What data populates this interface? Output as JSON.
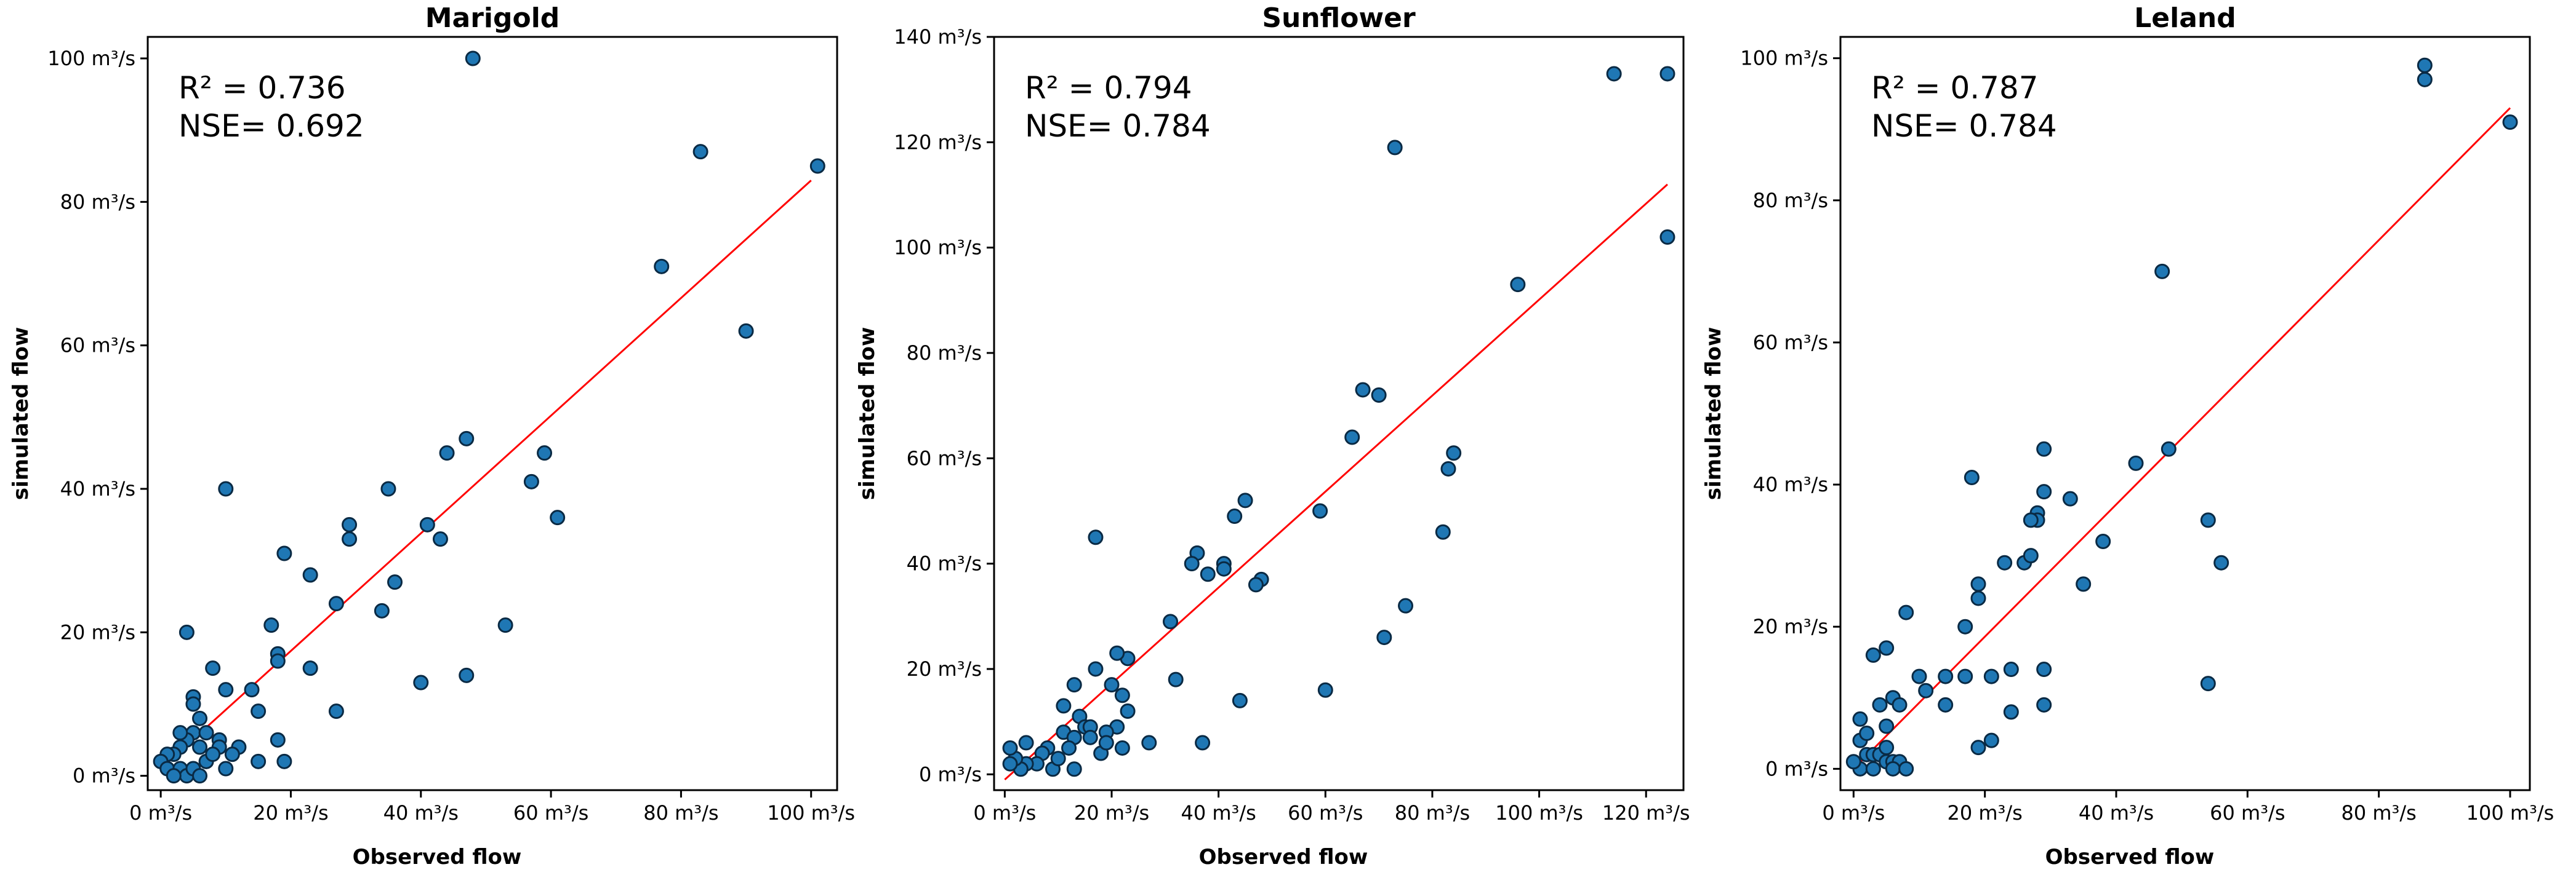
{
  "figure": {
    "xlabel": "Observed flow",
    "ylabel": "simulated flow"
  },
  "chart_data": [
    {
      "type": "scatter",
      "title": "Marigold",
      "xlabel": "Observed flow",
      "ylabel": "simulated flow",
      "unit": "m³/s",
      "xlim": [
        -2,
        104
      ],
      "ylim": [
        -2,
        103
      ],
      "xticks": [
        0,
        20,
        40,
        60,
        80,
        100
      ],
      "yticks": [
        0,
        20,
        40,
        60,
        80,
        100
      ],
      "xtick_labels": [
        "0 m³/s",
        "20 m³/s",
        "40 m³/s",
        "60 m³/s",
        "80 m³/s",
        "100 m³/s"
      ],
      "ytick_labels": [
        "0 m³/s",
        "20 m³/s",
        "40 m³/s",
        "60 m³/s",
        "80 m³/s",
        "100 m³/s"
      ],
      "stats": {
        "r2_label": "R² = 0.736",
        "nse_label": "NSE= 0.692"
      },
      "fit_line": [
        [
          0,
          1
        ],
        [
          100,
          83
        ]
      ],
      "points": [
        [
          48,
          100
        ],
        [
          101,
          85
        ],
        [
          83,
          87
        ],
        [
          77,
          71
        ],
        [
          90,
          62
        ],
        [
          47,
          47
        ],
        [
          44,
          45
        ],
        [
          59,
          45
        ],
        [
          57,
          41
        ],
        [
          61,
          36
        ],
        [
          35,
          40
        ],
        [
          10,
          40
        ],
        [
          29,
          35
        ],
        [
          29,
          33
        ],
        [
          41,
          35
        ],
        [
          43,
          33
        ],
        [
          19,
          31
        ],
        [
          36,
          27
        ],
        [
          23,
          28
        ],
        [
          34,
          23
        ],
        [
          27,
          24
        ],
        [
          53,
          21
        ],
        [
          17,
          21
        ],
        [
          18,
          17
        ],
        [
          18,
          16
        ],
        [
          23,
          15
        ],
        [
          40,
          13
        ],
        [
          47,
          14
        ],
        [
          4,
          20
        ],
        [
          8,
          15
        ],
        [
          5,
          11
        ],
        [
          5,
          10
        ],
        [
          10,
          12
        ],
        [
          14,
          12
        ],
        [
          27,
          9
        ],
        [
          15,
          9
        ],
        [
          18,
          5
        ],
        [
          19,
          2
        ],
        [
          15,
          2
        ],
        [
          12,
          4
        ],
        [
          11,
          3
        ],
        [
          9,
          5
        ],
        [
          9,
          4
        ],
        [
          6,
          8
        ],
        [
          5,
          6
        ],
        [
          7,
          6
        ],
        [
          6,
          4
        ],
        [
          4,
          5
        ],
        [
          3,
          4
        ],
        [
          2,
          3
        ],
        [
          1,
          3
        ],
        [
          0,
          2
        ],
        [
          1,
          1
        ],
        [
          3,
          1
        ],
        [
          4,
          0
        ],
        [
          5,
          1
        ],
        [
          6,
          0
        ],
        [
          7,
          2
        ],
        [
          2,
          0
        ],
        [
          10,
          1
        ],
        [
          3,
          6
        ],
        [
          8,
          3
        ]
      ]
    },
    {
      "type": "scatter",
      "title": "Sunflower",
      "xlabel": "Observed flow",
      "ylabel": "simulated flow",
      "unit": "m³/s",
      "xlim": [
        -2,
        127
      ],
      "ylim": [
        -3,
        140
      ],
      "xticks": [
        0,
        20,
        40,
        60,
        80,
        100,
        120
      ],
      "yticks": [
        0,
        20,
        40,
        60,
        80,
        100,
        120,
        140
      ],
      "xtick_labels": [
        "0 m³/s",
        "20 m³/s",
        "40 m³/s",
        "60 m³/s",
        "80 m³/s",
        "100 m³/s",
        "120 m³/s"
      ],
      "ytick_labels": [
        "0 m³/s",
        "20 m³/s",
        "40 m³/s",
        "60 m³/s",
        "80 m³/s",
        "100 m³/s",
        "120 m³/s",
        "140 m³/s"
      ],
      "stats": {
        "r2_label": "R² = 0.794",
        "nse_label": "NSE= 0.784"
      },
      "fit_line": [
        [
          0,
          -1
        ],
        [
          124,
          112
        ]
      ],
      "points": [
        [
          114,
          133
        ],
        [
          124,
          133
        ],
        [
          124,
          102
        ],
        [
          73,
          119
        ],
        [
          96,
          93
        ],
        [
          67,
          73
        ],
        [
          70,
          72
        ],
        [
          65,
          64
        ],
        [
          84,
          61
        ],
        [
          83,
          58
        ],
        [
          59,
          50
        ],
        [
          82,
          46
        ],
        [
          45,
          52
        ],
        [
          43,
          49
        ],
        [
          36,
          42
        ],
        [
          35,
          40
        ],
        [
          41,
          40
        ],
        [
          41,
          39
        ],
        [
          38,
          38
        ],
        [
          48,
          37
        ],
        [
          47,
          36
        ],
        [
          17,
          45
        ],
        [
          31,
          29
        ],
        [
          75,
          32
        ],
        [
          71,
          26
        ],
        [
          60,
          16
        ],
        [
          44,
          14
        ],
        [
          32,
          18
        ],
        [
          37,
          6
        ],
        [
          27,
          6
        ],
        [
          23,
          22
        ],
        [
          21,
          23
        ],
        [
          17,
          20
        ],
        [
          20,
          17
        ],
        [
          13,
          17
        ],
        [
          11,
          13
        ],
        [
          14,
          11
        ],
        [
          15,
          9
        ],
        [
          22,
          15
        ],
        [
          23,
          12
        ],
        [
          21,
          9
        ],
        [
          19,
          8
        ],
        [
          16,
          9
        ],
        [
          11,
          8
        ],
        [
          13,
          7
        ],
        [
          16,
          7
        ],
        [
          12,
          5
        ],
        [
          8,
          5
        ],
        [
          7,
          4
        ],
        [
          6,
          2
        ],
        [
          4,
          2
        ],
        [
          3,
          1
        ],
        [
          2,
          3
        ],
        [
          1,
          2
        ],
        [
          1,
          5
        ],
        [
          4,
          6
        ],
        [
          9,
          1
        ],
        [
          13,
          1
        ],
        [
          22,
          5
        ],
        [
          18,
          4
        ],
        [
          19,
          6
        ],
        [
          10,
          3
        ]
      ]
    },
    {
      "type": "scatter",
      "title": "Leland",
      "xlabel": "Observed flow",
      "ylabel": "simulated flow",
      "unit": "m³/s",
      "xlim": [
        -2,
        103
      ],
      "ylim": [
        -3,
        103
      ],
      "xticks": [
        0,
        20,
        40,
        60,
        80,
        100
      ],
      "yticks": [
        0,
        20,
        40,
        60,
        80,
        100
      ],
      "xtick_labels": [
        "0 m³/s",
        "20 m³/s",
        "40 m³/s",
        "60 m³/s",
        "80 m³/s",
        "100 m³/s"
      ],
      "ytick_labels": [
        "0 m³/s",
        "20 m³/s",
        "40 m³/s",
        "60 m³/s",
        "80 m³/s",
        "100 m³/s"
      ],
      "stats": {
        "r2_label": "R² = 0.787",
        "nse_label": "NSE= 0.784"
      },
      "fit_line": [
        [
          0,
          0
        ],
        [
          100,
          93
        ]
      ],
      "points": [
        [
          87,
          99
        ],
        [
          87,
          97
        ],
        [
          100,
          91
        ],
        [
          47,
          70
        ],
        [
          48,
          45
        ],
        [
          43,
          43
        ],
        [
          29,
          45
        ],
        [
          33,
          38
        ],
        [
          29,
          39
        ],
        [
          28,
          36
        ],
        [
          28,
          35
        ],
        [
          27,
          35
        ],
        [
          38,
          32
        ],
        [
          26,
          29
        ],
        [
          27,
          30
        ],
        [
          35,
          26
        ],
        [
          23,
          29
        ],
        [
          18,
          41
        ],
        [
          19,
          26
        ],
        [
          19,
          24
        ],
        [
          17,
          20
        ],
        [
          8,
          22
        ],
        [
          5,
          17
        ],
        [
          3,
          16
        ],
        [
          17,
          13
        ],
        [
          21,
          13
        ],
        [
          10,
          13
        ],
        [
          11,
          11
        ],
        [
          4,
          9
        ],
        [
          6,
          10
        ],
        [
          7,
          9
        ],
        [
          5,
          6
        ],
        [
          1,
          4
        ],
        [
          2,
          5
        ],
        [
          2,
          2
        ],
        [
          3,
          2
        ],
        [
          4,
          2
        ],
        [
          5,
          3
        ],
        [
          5,
          1
        ],
        [
          6,
          1
        ],
        [
          7,
          1
        ],
        [
          1,
          0
        ],
        [
          3,
          0
        ],
        [
          6,
          0
        ],
        [
          0,
          1
        ],
        [
          19,
          3
        ],
        [
          21,
          4
        ],
        [
          24,
          8
        ],
        [
          24,
          14
        ],
        [
          29,
          14
        ],
        [
          29,
          9
        ],
        [
          14,
          9
        ],
        [
          14,
          13
        ],
        [
          54,
          35
        ],
        [
          56,
          29
        ],
        [
          54,
          12
        ],
        [
          8,
          0
        ],
        [
          1,
          7
        ]
      ]
    }
  ]
}
